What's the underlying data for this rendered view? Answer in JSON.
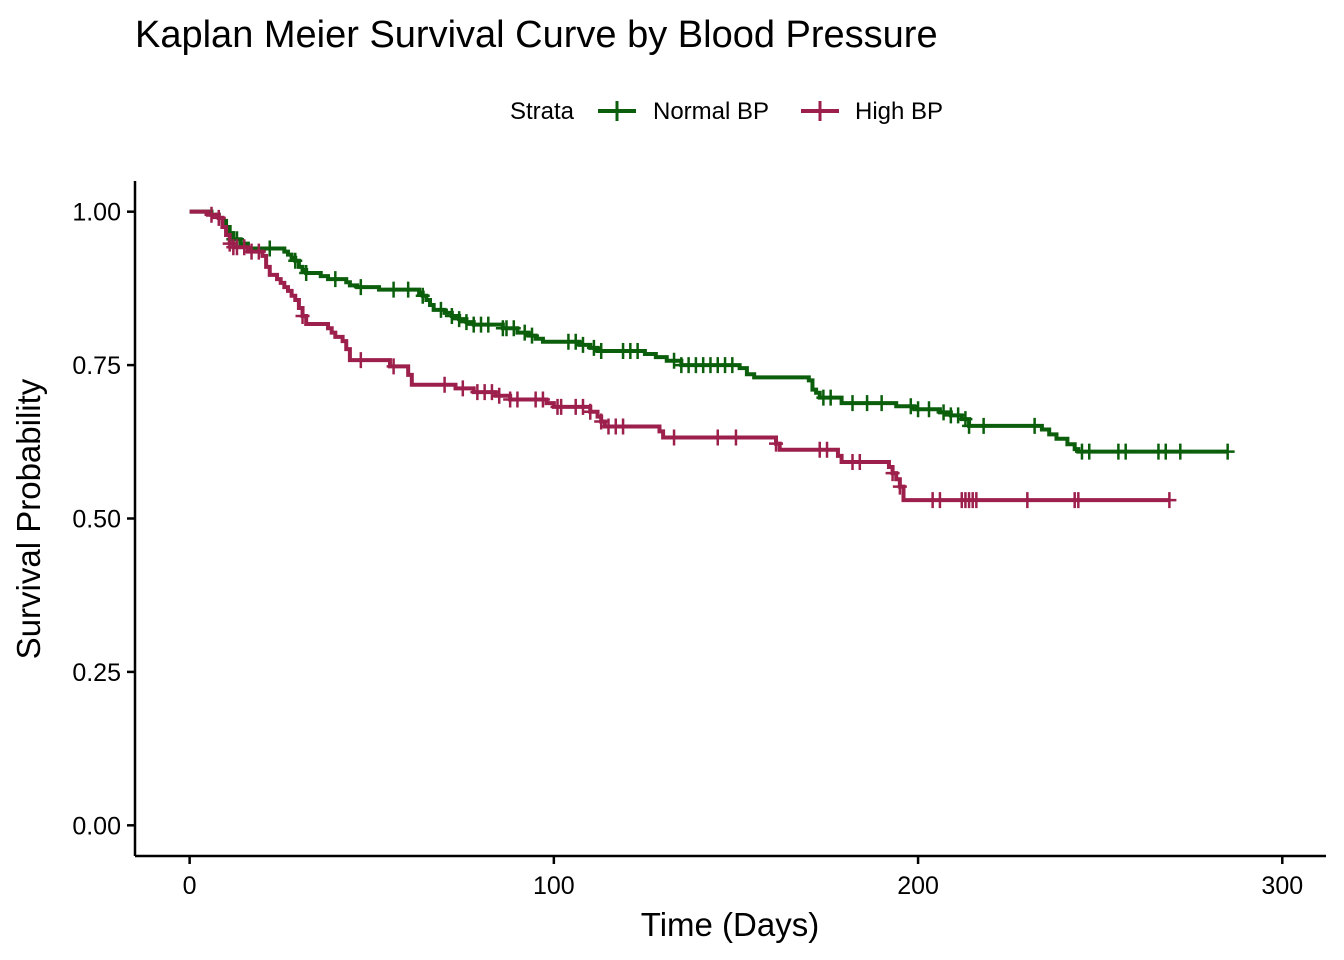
{
  "chart_data": {
    "type": "line",
    "title": "Kaplan Meier Survival Curve by Blood Pressure",
    "xlabel": "Time (Days)",
    "ylabel": "Survival Probability",
    "xlim": [
      -15,
      312
    ],
    "ylim": [
      -0.05,
      1.05
    ],
    "x_ticks": [
      0,
      100,
      200,
      300
    ],
    "y_ticks": [
      0.0,
      0.25,
      0.5,
      0.75,
      1.0
    ],
    "x_tick_labels": [
      "0",
      "100",
      "200",
      "300"
    ],
    "y_tick_labels": [
      "0.00",
      "0.25",
      "0.50",
      "0.75",
      "1.00"
    ],
    "grid": false,
    "legend": {
      "title": "Strata",
      "position": "top"
    },
    "series": [
      {
        "name": "Normal BP",
        "color": "#0B5E0B",
        "steps": [
          [
            0,
            1.0
          ],
          [
            6,
            0.995
          ],
          [
            8,
            0.99
          ],
          [
            9,
            0.985
          ],
          [
            10,
            0.975
          ],
          [
            11,
            0.965
          ],
          [
            12,
            0.955
          ],
          [
            14,
            0.948
          ],
          [
            16,
            0.94
          ],
          [
            26,
            0.935
          ],
          [
            27,
            0.93
          ],
          [
            28,
            0.925
          ],
          [
            29,
            0.92
          ],
          [
            30,
            0.91
          ],
          [
            31,
            0.905
          ],
          [
            32,
            0.9
          ],
          [
            36,
            0.895
          ],
          [
            38,
            0.89
          ],
          [
            43,
            0.885
          ],
          [
            44,
            0.88
          ],
          [
            46,
            0.877
          ],
          [
            52,
            0.873
          ],
          [
            63,
            0.868
          ],
          [
            64,
            0.863
          ],
          [
            65,
            0.856
          ],
          [
            66,
            0.848
          ],
          [
            67,
            0.84
          ],
          [
            70,
            0.835
          ],
          [
            72,
            0.83
          ],
          [
            74,
            0.825
          ],
          [
            76,
            0.82
          ],
          [
            78,
            0.816
          ],
          [
            86,
            0.81
          ],
          [
            90,
            0.803
          ],
          [
            93,
            0.798
          ],
          [
            95,
            0.793
          ],
          [
            97,
            0.788
          ],
          [
            107,
            0.783
          ],
          [
            110,
            0.778
          ],
          [
            112,
            0.773
          ],
          [
            125,
            0.768
          ],
          [
            128,
            0.763
          ],
          [
            131,
            0.757
          ],
          [
            135,
            0.75
          ],
          [
            151,
            0.745
          ],
          [
            153,
            0.735
          ],
          [
            155,
            0.73
          ],
          [
            170,
            0.725
          ],
          [
            171,
            0.71
          ],
          [
            172,
            0.705
          ],
          [
            173,
            0.697
          ],
          [
            179,
            0.688
          ],
          [
            194,
            0.683
          ],
          [
            199,
            0.678
          ],
          [
            206,
            0.673
          ],
          [
            209,
            0.668
          ],
          [
            212,
            0.662
          ],
          [
            214,
            0.651
          ],
          [
            234,
            0.645
          ],
          [
            236,
            0.637
          ],
          [
            238,
            0.63
          ],
          [
            241,
            0.621
          ],
          [
            243,
            0.613
          ],
          [
            244,
            0.609
          ]
        ],
        "end_x": 285,
        "censor_times": [
          12,
          13,
          22,
          29,
          32,
          40,
          47,
          56,
          60,
          64,
          69,
          72,
          74,
          76,
          78,
          80,
          82,
          86,
          87,
          89,
          92,
          94,
          104,
          106,
          108,
          111,
          113,
          119,
          121,
          123,
          133,
          135,
          137,
          139,
          141,
          143,
          145,
          147,
          149,
          174,
          176,
          182,
          186,
          190,
          198,
          200,
          203,
          207,
          209,
          211,
          213,
          214,
          218,
          232,
          245,
          247,
          255,
          257,
          266,
          268,
          272,
          285
        ]
      },
      {
        "name": "High BP",
        "color": "#9C1F4C",
        "steps": [
          [
            0,
            1.0
          ],
          [
            5,
            0.995
          ],
          [
            8,
            0.99
          ],
          [
            9,
            0.975
          ],
          [
            10,
            0.962
          ],
          [
            11,
            0.948
          ],
          [
            12,
            0.942
          ],
          [
            16,
            0.935
          ],
          [
            20,
            0.928
          ],
          [
            21,
            0.91
          ],
          [
            22,
            0.897
          ],
          [
            24,
            0.89
          ],
          [
            25,
            0.884
          ],
          [
            26,
            0.877
          ],
          [
            27,
            0.871
          ],
          [
            28,
            0.863
          ],
          [
            29,
            0.856
          ],
          [
            30,
            0.843
          ],
          [
            31,
            0.83
          ],
          [
            32,
            0.817
          ],
          [
            38,
            0.81
          ],
          [
            39,
            0.803
          ],
          [
            40,
            0.796
          ],
          [
            42,
            0.789
          ],
          [
            43,
            0.776
          ],
          [
            44,
            0.758
          ],
          [
            55,
            0.748
          ],
          [
            60,
            0.734
          ],
          [
            61,
            0.718
          ],
          [
            73,
            0.712
          ],
          [
            78,
            0.706
          ],
          [
            84,
            0.7
          ],
          [
            88,
            0.694
          ],
          [
            98,
            0.688
          ],
          [
            100,
            0.682
          ],
          [
            110,
            0.674
          ],
          [
            112,
            0.666
          ],
          [
            113,
            0.658
          ],
          [
            114,
            0.65
          ],
          [
            129,
            0.642
          ],
          [
            130,
            0.632
          ],
          [
            161,
            0.622
          ],
          [
            162,
            0.612
          ],
          [
            178,
            0.602
          ],
          [
            179,
            0.592
          ],
          [
            192,
            0.584
          ],
          [
            193,
            0.574
          ],
          [
            194,
            0.564
          ],
          [
            195,
            0.552
          ],
          [
            196,
            0.53
          ]
        ],
        "end_x": 269,
        "censor_times": [
          6,
          8,
          11,
          12,
          13,
          15,
          17,
          19,
          31,
          47,
          56,
          70,
          75,
          79,
          81,
          83,
          85,
          88,
          90,
          95,
          97,
          101,
          102,
          106,
          108,
          110,
          113,
          115,
          117,
          119,
          133,
          145,
          150,
          161,
          173,
          175,
          182,
          184,
          193,
          195,
          204,
          206,
          212,
          213,
          214,
          215,
          216,
          230,
          243,
          244,
          269
        ]
      }
    ]
  }
}
